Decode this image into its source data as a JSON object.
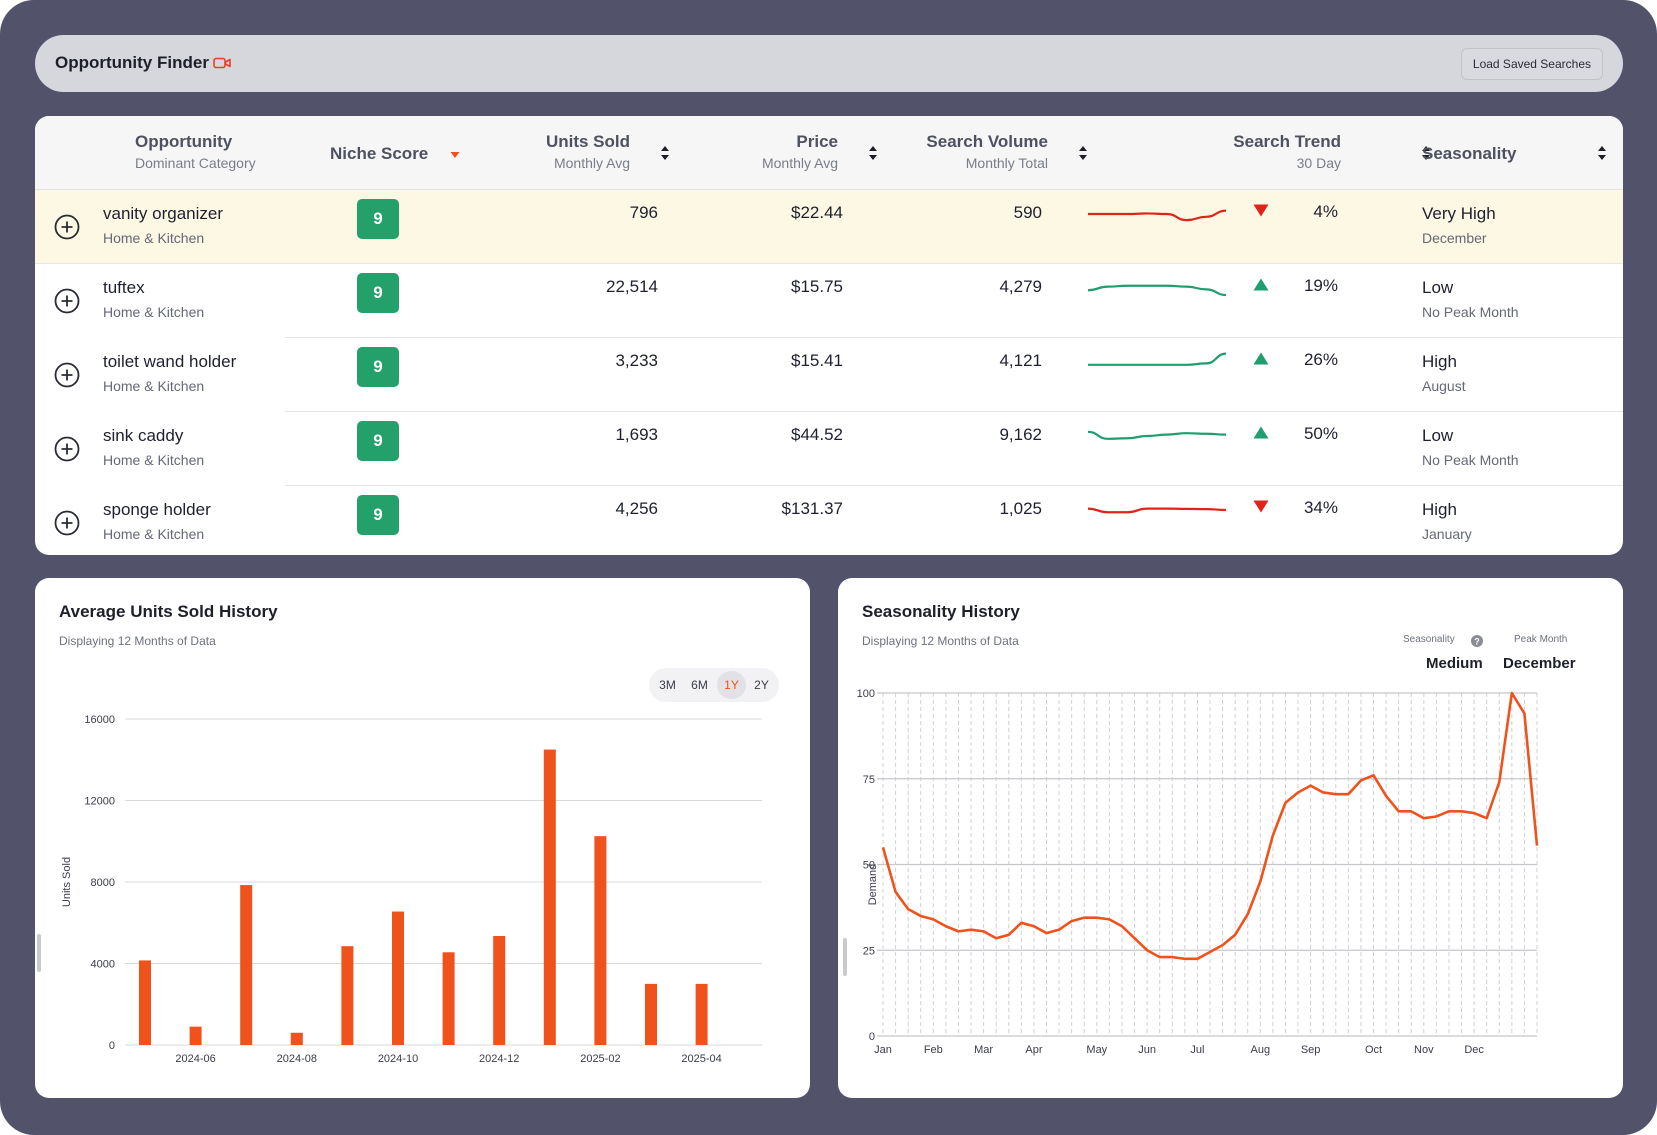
{
  "header": {
    "title": "Opportunity Finder",
    "load_saved_label": "Load Saved Searches"
  },
  "table": {
    "columns": {
      "opportunity": {
        "label": "Opportunity",
        "sub": "Dominant Category"
      },
      "niche_score": {
        "label": "Niche Score"
      },
      "units_sold": {
        "label": "Units Sold",
        "sub": "Monthly Avg"
      },
      "price": {
        "label": "Price",
        "sub": "Monthly Avg"
      },
      "search_volume": {
        "label": "Search Volume",
        "sub": "Monthly Total"
      },
      "search_trend": {
        "label": "Search Trend",
        "sub": "30 Day"
      },
      "seasonality": {
        "label": "Seasonality"
      }
    },
    "rows": [
      {
        "name": "vanity organizer",
        "category": "Home & Kitchen",
        "score": "9",
        "units": "796",
        "price": "$22.44",
        "volume": "590",
        "trend_dir": "down",
        "trend_pct": "4%",
        "season": "Very High",
        "season_month": "December",
        "spark": [
          0.5,
          0.5,
          0.5,
          0.48,
          0.5,
          0.72,
          0.6,
          0.38
        ]
      },
      {
        "name": "tuftex",
        "category": "Home & Kitchen",
        "score": "9",
        "units": "22,514",
        "price": "$15.75",
        "volume": "4,279",
        "trend_dir": "up",
        "trend_pct": "19%",
        "season": "Low",
        "season_month": "No Peak Month",
        "spark": [
          0.58,
          0.45,
          0.42,
          0.42,
          0.42,
          0.45,
          0.55,
          0.75
        ]
      },
      {
        "name": "toilet wand holder",
        "category": "Home & Kitchen",
        "score": "9",
        "units": "3,233",
        "price": "$15.41",
        "volume": "4,121",
        "trend_dir": "up",
        "trend_pct": "26%",
        "season": "High",
        "season_month": "August",
        "spark": [
          0.6,
          0.6,
          0.6,
          0.6,
          0.6,
          0.6,
          0.55,
          0.2
        ]
      },
      {
        "name": "sink caddy",
        "category": "Home & Kitchen",
        "score": "9",
        "units": "1,693",
        "price": "$44.52",
        "volume": "9,162",
        "trend_dir": "up",
        "trend_pct": "50%",
        "season": "Low",
        "season_month": "No Peak Month",
        "spark": [
          0.35,
          0.6,
          0.58,
          0.5,
          0.45,
          0.4,
          0.42,
          0.45
        ]
      },
      {
        "name": "sponge holder",
        "category": "Home & Kitchen",
        "score": "9",
        "units": "4,256",
        "price": "$131.37",
        "volume": "1,025",
        "trend_dir": "down",
        "trend_pct": "34%",
        "season": "High",
        "season_month": "January",
        "spark": [
          0.45,
          0.58,
          0.58,
          0.45,
          0.45,
          0.46,
          0.47,
          0.5
        ]
      }
    ]
  },
  "units_history": {
    "title": "Average Units Sold History",
    "subtitle": "Displaying 12 Months of Data",
    "ranges": [
      "3M",
      "6M",
      "1Y",
      "2Y"
    ],
    "active_range": "1Y"
  },
  "seasonality_history": {
    "title": "Seasonality History",
    "subtitle": "Displaying 12 Months of Data",
    "seasonality_label": "Seasonality",
    "seasonality_value": "Medium",
    "peak_label": "Peak Month",
    "peak_value": "December"
  },
  "colors": {
    "accent": "#f0521c",
    "score_green": "#24a06b",
    "trend_up": "#1f9e6e",
    "trend_down": "#e02418",
    "highlight_row": "#fcf8e3"
  },
  "chart_data": [
    {
      "type": "bar",
      "title": "",
      "xlabel": "",
      "ylabel": "Units Sold",
      "ylim": [
        0,
        16000
      ],
      "yticks": [
        0,
        4000,
        8000,
        12000,
        16000
      ],
      "x_tick_labels": [
        "2024-06",
        "2024-08",
        "2024-10",
        "2024-12",
        "2025-02",
        "2025-04"
      ],
      "categories": [
        "2024-05",
        "2024-06",
        "2024-07",
        "2024-08",
        "2024-09",
        "2024-10",
        "2024-11",
        "2024-12",
        "2025-01",
        "2025-02",
        "2025-03",
        "2025-04"
      ],
      "values": [
        4150,
        900,
        7850,
        600,
        4850,
        6550,
        4550,
        5350,
        14500,
        10250,
        3000,
        3000
      ],
      "color": "#f0521c",
      "grid": true
    },
    {
      "type": "line",
      "title": "",
      "xlabel": "",
      "ylabel": "Demand",
      "ylim": [
        0,
        100
      ],
      "yticks": [
        0,
        25,
        50,
        75,
        100
      ],
      "x_tick_labels": [
        "Jan",
        "Feb",
        "Mar",
        "Apr",
        "May",
        "Jun",
        "Jul",
        "Aug",
        "Sep",
        "Oct",
        "Nov",
        "Dec"
      ],
      "x_tick_weeks": [
        1,
        5,
        9,
        13,
        18,
        22,
        26,
        31,
        35,
        40,
        44,
        48
      ],
      "weeks": 53,
      "values": [
        55,
        42,
        37,
        35,
        34,
        32,
        30.5,
        31,
        30.5,
        28.5,
        29.5,
        33,
        32,
        30,
        31,
        33.5,
        34.5,
        34.5,
        34,
        32,
        28.5,
        25,
        23,
        23,
        22.5,
        22.5,
        24.5,
        26.5,
        29.5,
        35.5,
        45,
        58.5,
        68,
        71,
        73,
        71,
        70.5,
        70.5,
        74.5,
        76,
        70,
        65.5,
        65.5,
        63.5,
        64,
        65.5,
        65.5,
        65,
        63.5,
        74,
        100,
        94,
        55.5
      ],
      "color": "#f0521c",
      "grid": true
    }
  ]
}
